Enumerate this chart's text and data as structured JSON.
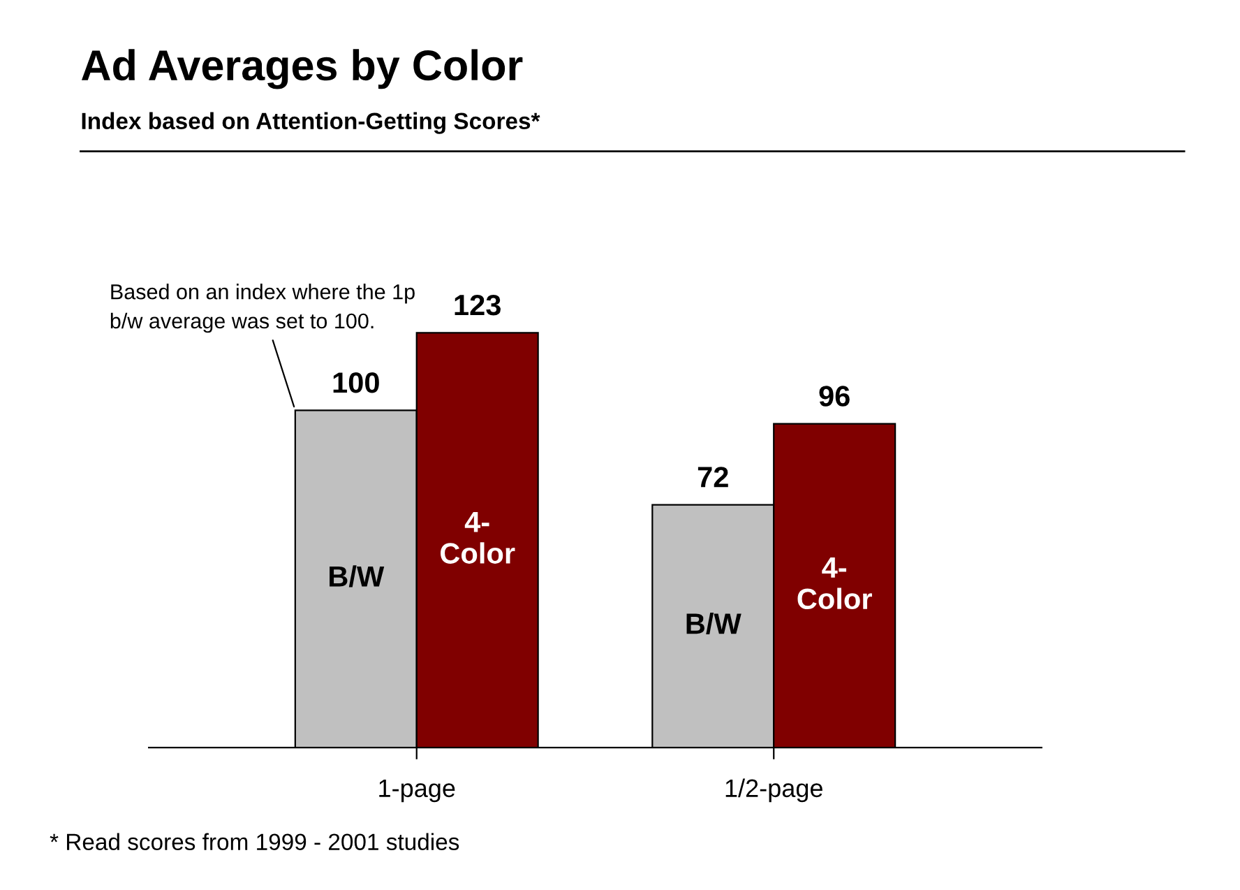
{
  "chart_data": {
    "type": "bar",
    "title": "Ad Averages by Color",
    "subtitle": "Index based on Attention-Getting Scores*",
    "categories": [
      "1-page",
      "1/2-page"
    ],
    "series": [
      {
        "name": "B/W",
        "color": "#c0c0c0",
        "values": [
          100,
          72
        ]
      },
      {
        "name": "4-Color",
        "color": "#800000",
        "values": [
          123,
          96
        ]
      }
    ],
    "data_labels": true,
    "grid": false,
    "legend": false,
    "annotations": [
      "Based on an index where the 1p b/w average was set to 100.",
      "* Read scores from 1999 - 2001 studies"
    ]
  }
}
